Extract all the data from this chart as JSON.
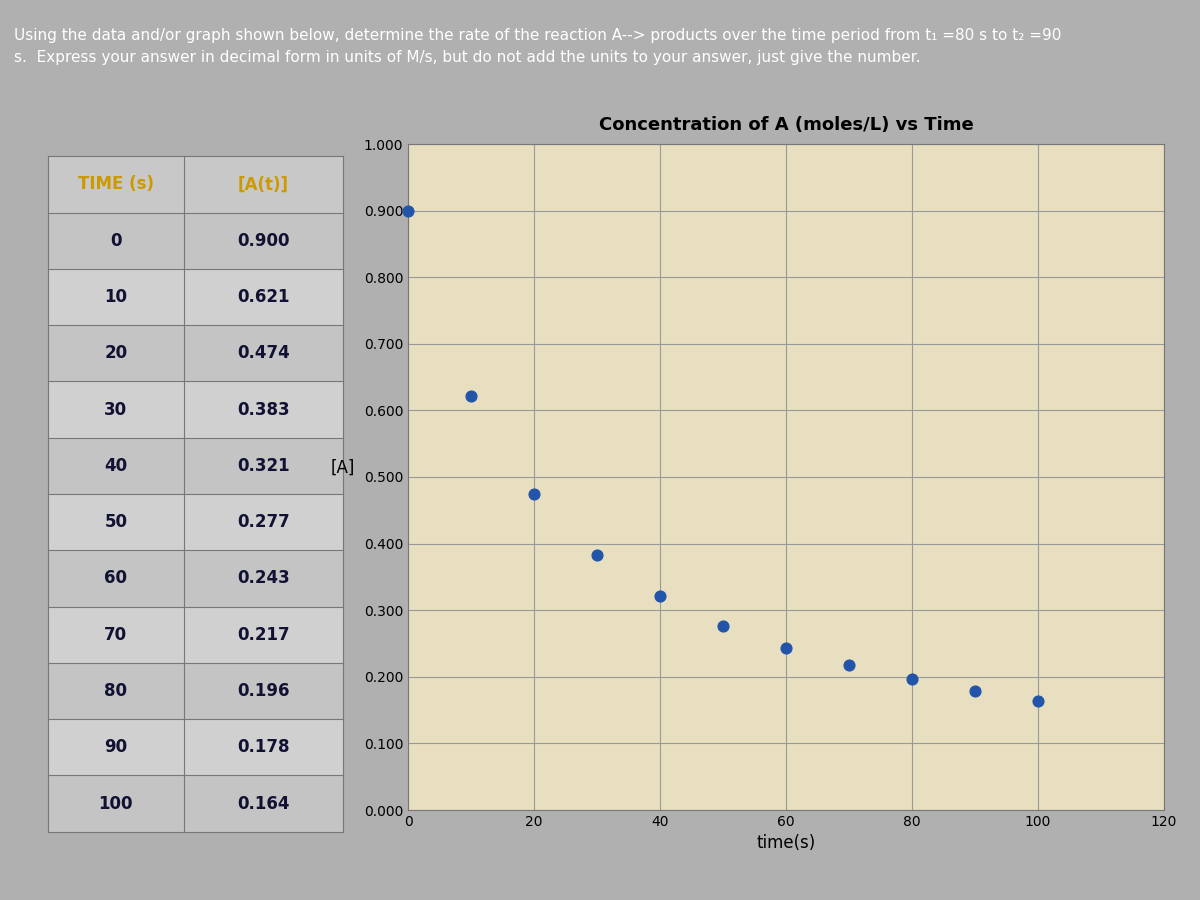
{
  "title_text": "Using the data and/or graph shown below, determine the rate of the reaction A--> products over the time period from t₁ =80 s to t₂ =90\ns.  Express your answer in decimal form in units of M/s, but do not add the units to your answer, just give the number.",
  "table_header_time": "TIME (s)",
  "table_header_conc": "[A(t)]",
  "time_values": [
    0,
    10,
    20,
    30,
    40,
    50,
    60,
    70,
    80,
    90,
    100
  ],
  "conc_values": [
    0.9,
    0.621,
    0.474,
    0.383,
    0.321,
    0.277,
    0.243,
    0.217,
    0.196,
    0.178,
    0.164
  ],
  "graph_title": "Concentration of A (moles/L) vs Time",
  "xlabel": "time(s)",
  "ylabel": "[A]",
  "ylim": [
    0.0,
    1.0
  ],
  "xlim": [
    0,
    120
  ],
  "yticks": [
    0.0,
    0.1,
    0.2,
    0.3,
    0.4,
    0.5,
    0.6,
    0.7,
    0.8,
    0.9,
    1.0
  ],
  "xticks": [
    0,
    20,
    40,
    60,
    80,
    100,
    120
  ],
  "dot_color": "#2255aa",
  "dot_size": 60,
  "bg_color_outer": "#b0b0b0",
  "bg_color_title": "#555555",
  "bg_color_table": "#bbbbbb",
  "bg_color_plot": "#e8dfc0",
  "table_header_color": "#cc9900",
  "table_text_color": "#111133",
  "grid_color": "#999999",
  "title_fontsize": 11,
  "table_fontsize": 12,
  "graph_title_fontsize": 13
}
